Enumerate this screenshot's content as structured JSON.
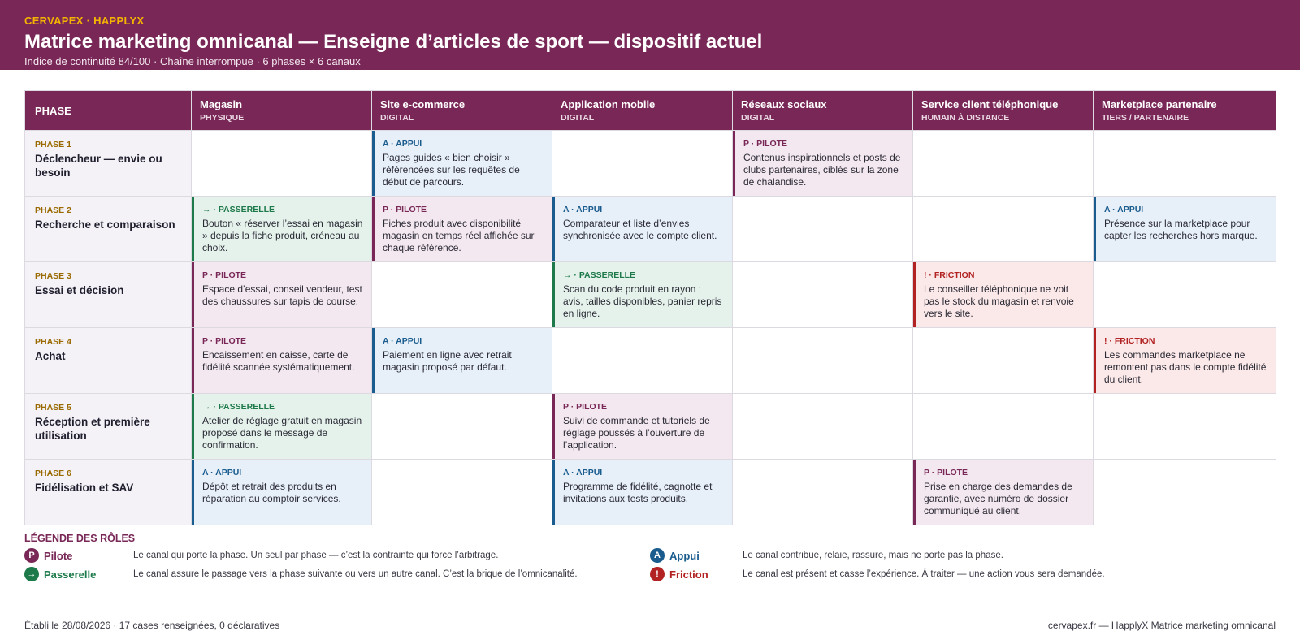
{
  "header": {
    "brand": "CERVAPEX · HAPPLYX",
    "title": "Matrice marketing omnicanal — Enseigne d’articles de sport — dispositif actuel",
    "subtitle": "Indice de continuité 84/100 · Chaîne interrompue · 6 phases × 6 canaux"
  },
  "colors": {
    "header_bg": "#782756",
    "brand_accent": "#f5b400",
    "pilote": "#782756",
    "appui": "#1a5c8e",
    "passerelle": "#1e7a4a",
    "friction": "#b22222"
  },
  "matrix": {
    "phase_header": "PHASE",
    "channels": [
      {
        "name": "Magasin",
        "type": "PHYSIQUE"
      },
      {
        "name": "Site e-commerce",
        "type": "DIGITAL"
      },
      {
        "name": "Application mobile",
        "type": "DIGITAL"
      },
      {
        "name": "Réseaux sociaux",
        "type": "DIGITAL"
      },
      {
        "name": "Service client téléphonique",
        "type": "HUMAIN À DISTANCE"
      },
      {
        "name": "Marketplace partenaire",
        "type": "TIERS / PARTENAIRE"
      }
    ],
    "phases": [
      {
        "num": "PHASE 1",
        "name": "Déclencheur — envie ou besoin",
        "cells": [
          null,
          {
            "role": "appui",
            "tag": "A · APPUI",
            "text": "Pages guides « bien choisir » référencées sur les requêtes de début de parcours."
          },
          null,
          {
            "role": "pilote",
            "tag": "P · PILOTE",
            "text": "Contenus inspirationnels et posts de clubs partenaires, ciblés sur la zone de chalandise."
          },
          null,
          null
        ]
      },
      {
        "num": "PHASE 2",
        "name": "Recherche et comparaison",
        "cells": [
          {
            "role": "passerelle",
            "tag": "→ · PASSERELLE",
            "text": "Bouton « réserver l’essai en magasin » depuis la fiche produit, créneau au choix."
          },
          {
            "role": "pilote",
            "tag": "P · PILOTE",
            "text": "Fiches produit avec disponibilité magasin en temps réel affichée sur chaque référence."
          },
          {
            "role": "appui",
            "tag": "A · APPUI",
            "text": "Comparateur et liste d’envies synchronisée avec le compte client."
          },
          null,
          null,
          {
            "role": "appui",
            "tag": "A · APPUI",
            "text": "Présence sur la marketplace pour capter les recherches hors marque."
          }
        ]
      },
      {
        "num": "PHASE 3",
        "name": "Essai et décision",
        "cells": [
          {
            "role": "pilote",
            "tag": "P · PILOTE",
            "text": "Espace d’essai, conseil vendeur, test des chaussures sur tapis de course."
          },
          null,
          {
            "role": "passerelle",
            "tag": "→ · PASSERELLE",
            "text": "Scan du code produit en rayon : avis, tailles disponibles, panier repris en ligne."
          },
          null,
          {
            "role": "friction",
            "tag": "! · FRICTION",
            "text": "Le conseiller téléphonique ne voit pas le stock du magasin et renvoie vers le site."
          },
          null
        ]
      },
      {
        "num": "PHASE 4",
        "name": "Achat",
        "cells": [
          {
            "role": "pilote",
            "tag": "P · PILOTE",
            "text": "Encaissement en caisse, carte de fidélité scannée systématiquement."
          },
          {
            "role": "appui",
            "tag": "A · APPUI",
            "text": "Paiement en ligne avec retrait magasin proposé par défaut."
          },
          null,
          null,
          null,
          {
            "role": "friction",
            "tag": "! · FRICTION",
            "text": "Les commandes marketplace ne remontent pas dans le compte fidélité du client."
          }
        ]
      },
      {
        "num": "PHASE 5",
        "name": "Réception et première utilisation",
        "cells": [
          {
            "role": "passerelle",
            "tag": "→ · PASSERELLE",
            "text": "Atelier de réglage gratuit en magasin proposé dans le message de confirmation."
          },
          null,
          {
            "role": "pilote",
            "tag": "P · PILOTE",
            "text": "Suivi de commande et tutoriels de réglage poussés à l’ouverture de l’application."
          },
          null,
          null,
          null
        ]
      },
      {
        "num": "PHASE 6",
        "name": "Fidélisation et SAV",
        "cells": [
          {
            "role": "appui",
            "tag": "A · APPUI",
            "text": "Dépôt et retrait des produits en réparation au comptoir services."
          },
          null,
          {
            "role": "appui",
            "tag": "A · APPUI",
            "text": "Programme de fidélité, cagnotte et invitations aux tests produits."
          },
          null,
          {
            "role": "pilote",
            "tag": "P · PILOTE",
            "text": "Prise en charge des demandes de garantie, avec numéro de dossier communiqué au client."
          },
          null
        ]
      }
    ]
  },
  "legend": {
    "title": "LÉGENDE DES RÔLES",
    "items": [
      {
        "role": "pilote",
        "glyph": "P",
        "name": "Pilote",
        "desc": "Le canal qui porte la phase. Un seul par phase — c’est la contrainte qui force l’arbitrage."
      },
      {
        "role": "passerelle",
        "glyph": "→",
        "name": "Passerelle",
        "desc": "Le canal assure le passage vers la phase suivante ou vers un autre canal. C’est la brique de l’omnicanalité."
      },
      {
        "role": "appui",
        "glyph": "A",
        "name": "Appui",
        "desc": "Le canal contribue, relaie, rassure, mais ne porte pas la phase."
      },
      {
        "role": "friction",
        "glyph": "!",
        "name": "Friction",
        "desc": "Le canal est présent et casse l’expérience. À traiter — une action vous sera demandée."
      }
    ]
  },
  "footer": {
    "left": "Établi le 28/08/2026 · 17 cases renseignées, 0 déclaratives",
    "right": "cervapex.fr — HapplyX Matrice marketing omnicanal"
  }
}
